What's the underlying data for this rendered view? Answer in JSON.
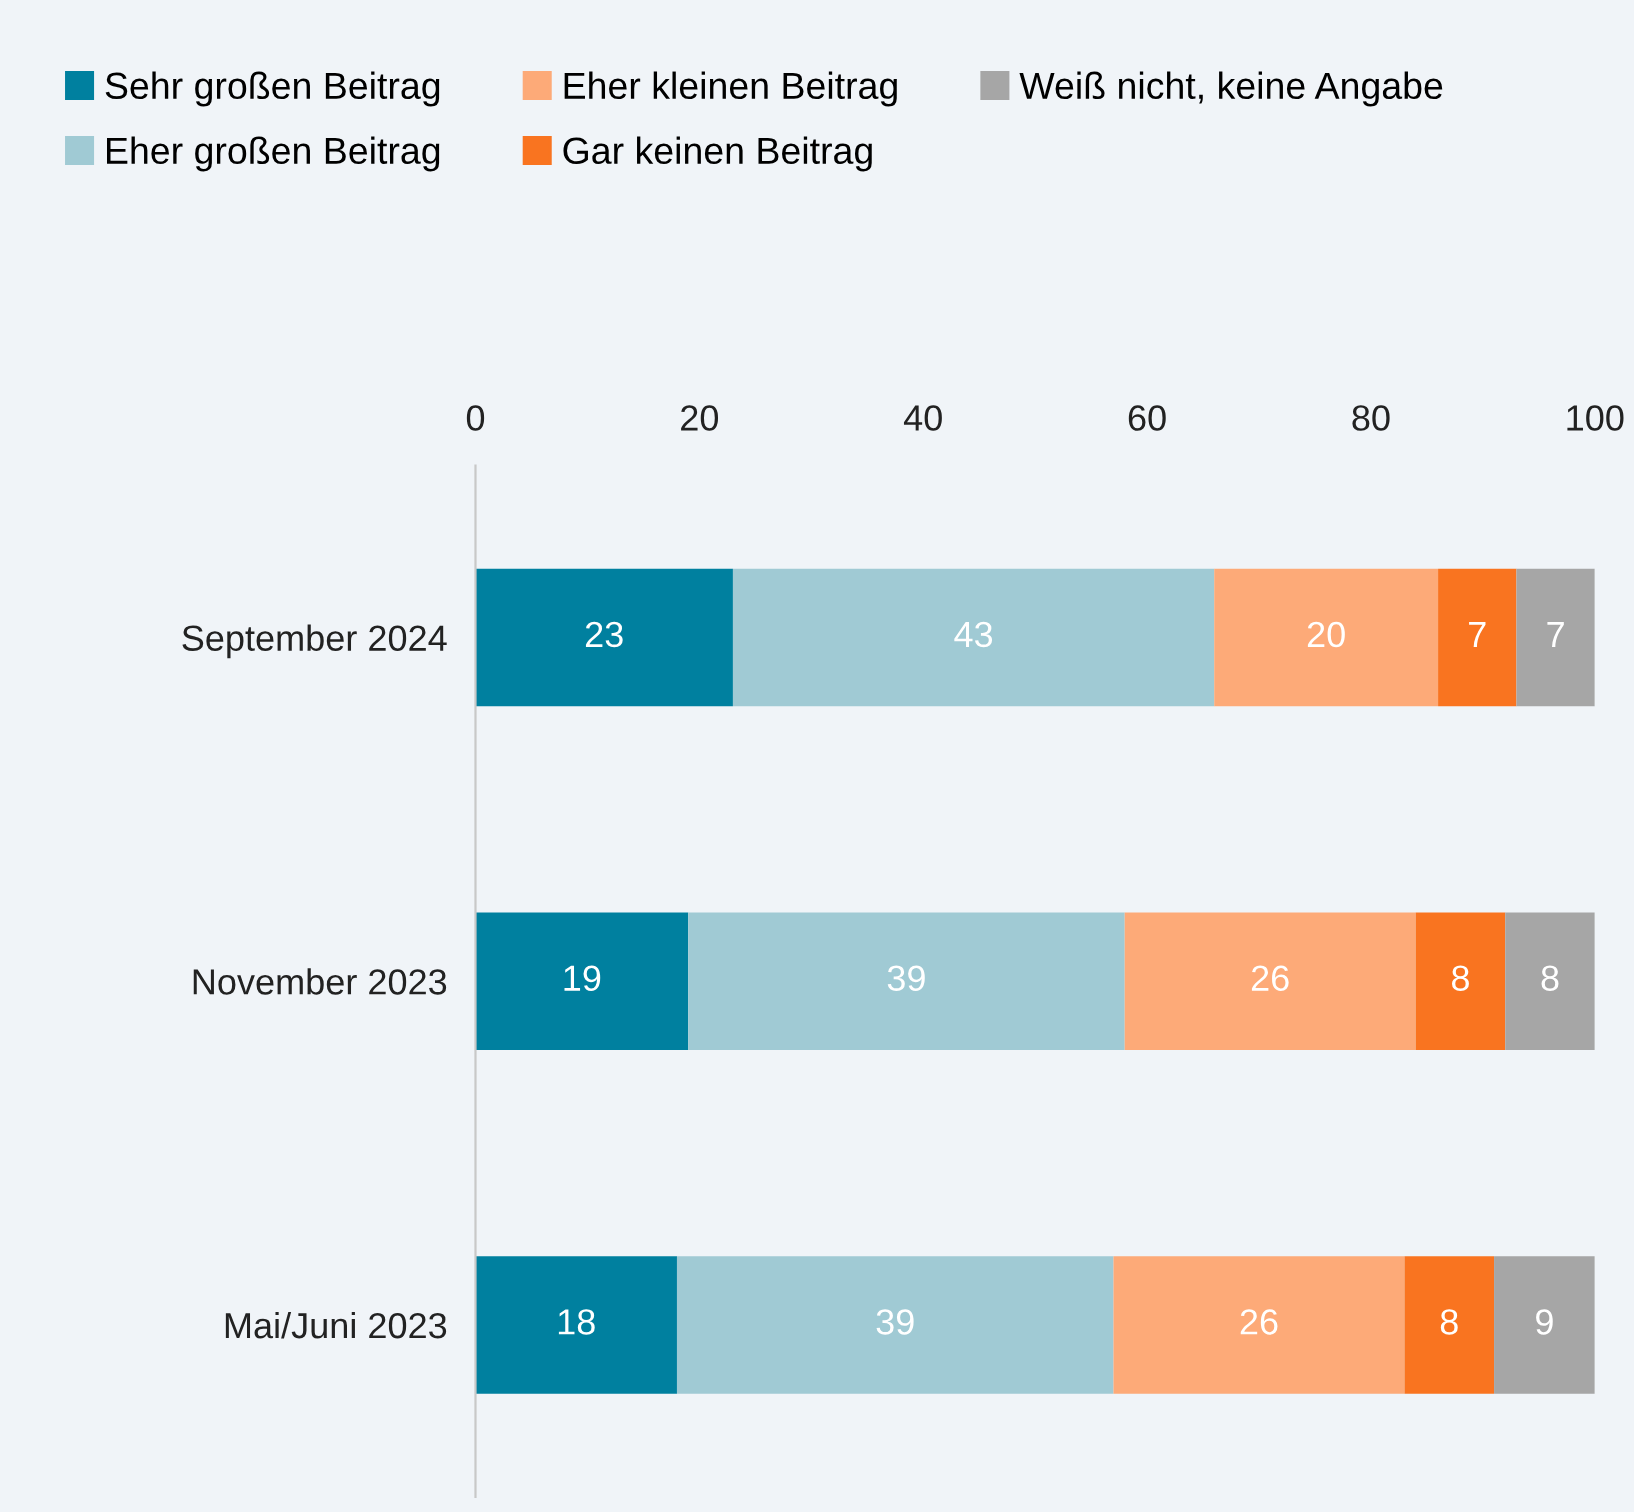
{
  "chart_data": {
    "type": "bar",
    "orientation": "horizontal",
    "stacked": true,
    "categories": [
      "September 2024",
      "November 2023",
      "Mai/Juni 2023"
    ],
    "series": [
      {
        "name": "Sehr großen Beitrag",
        "color": "#00809f",
        "values": [
          23,
          19,
          18
        ]
      },
      {
        "name": "Eher großen Beitrag",
        "color": "#a0cad4",
        "values": [
          43,
          39,
          39
        ]
      },
      {
        "name": "Eher kleinen Beitrag",
        "color": "#fdaa78",
        "values": [
          20,
          26,
          26
        ]
      },
      {
        "name": "Gar keinen Beitrag",
        "color": "#f97420",
        "values": [
          7,
          8,
          8
        ]
      },
      {
        "name": "Weiß nicht, keine Angabe",
        "color": "#a6a6a6",
        "values": [
          7,
          8,
          9
        ]
      }
    ],
    "xlim": [
      0,
      100
    ],
    "xticks": [
      0,
      20,
      40,
      60,
      80,
      100
    ],
    "data_labels": true,
    "legend": "top left",
    "grid": false
  }
}
